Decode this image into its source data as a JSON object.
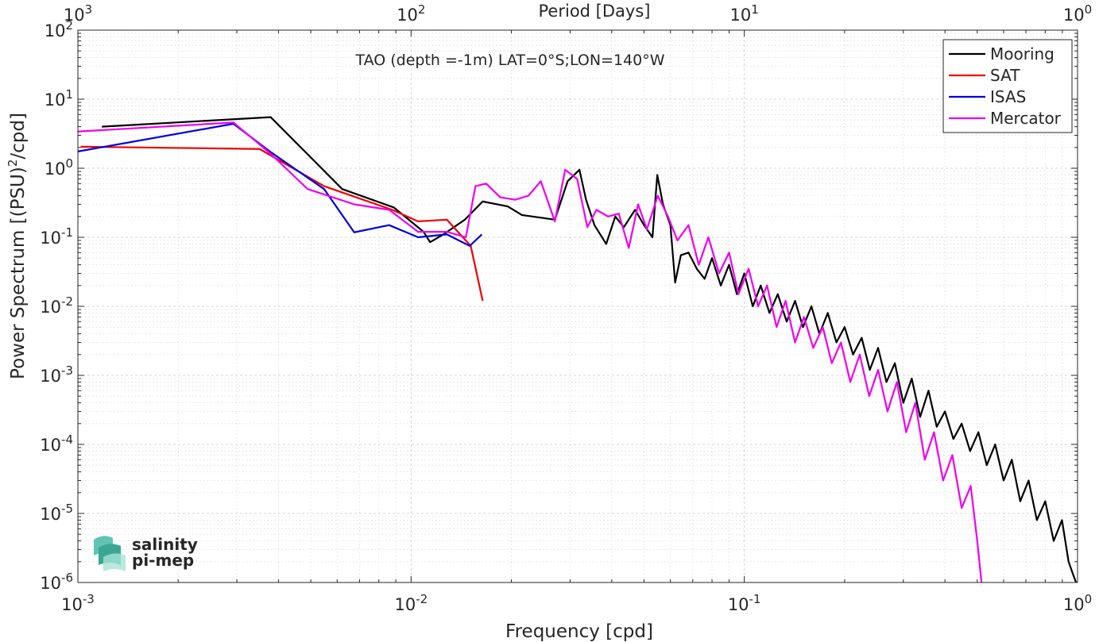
{
  "chart_data": {
    "type": "line",
    "title": "TAO (depth =-1m) LAT=0°S;LON=140°W",
    "xlabel": "Frequency [cpd]",
    "ylabel": "Power Spectrum [(PSU)",
    "ylabel_sup": "2",
    "ylabel_tail": "/cpd]",
    "top_xlabel": "Period [Days]",
    "x_scale": "log",
    "y_scale": "log",
    "xlim": [
      0.001,
      1
    ],
    "ylim": [
      1e-06,
      100
    ],
    "grid": "major+minor",
    "legend_position": "top-right",
    "x_ticks": [
      {
        "value": 0.001,
        "base": "10",
        "exp": "-3"
      },
      {
        "value": 0.01,
        "base": "10",
        "exp": "-2"
      },
      {
        "value": 0.1,
        "base": "10",
        "exp": "-1"
      },
      {
        "value": 1,
        "base": "10",
        "exp": "0"
      }
    ],
    "top_ticks": [
      {
        "value": 0.001,
        "base": "10",
        "exp": "3"
      },
      {
        "value": 0.01,
        "base": "10",
        "exp": "2"
      },
      {
        "value": 0.1,
        "base": "10",
        "exp": "1"
      },
      {
        "value": 1,
        "base": "10",
        "exp": "0"
      }
    ],
    "y_ticks": [
      {
        "value": 100,
        "base": "10",
        "exp": "2"
      },
      {
        "value": 10,
        "base": "10",
        "exp": "1"
      },
      {
        "value": 1,
        "base": "10",
        "exp": "0"
      },
      {
        "value": 0.1,
        "base": "10",
        "exp": "-1"
      },
      {
        "value": 0.01,
        "base": "10",
        "exp": "-2"
      },
      {
        "value": 0.001,
        "base": "10",
        "exp": "-3"
      },
      {
        "value": 0.0001,
        "base": "10",
        "exp": "-4"
      },
      {
        "value": 1e-05,
        "base": "10",
        "exp": "-5"
      },
      {
        "value": 1e-06,
        "base": "10",
        "exp": "-6"
      }
    ],
    "series": [
      {
        "name": "Mooring",
        "color": "#000000",
        "x": [
          0.00118,
          0.00379,
          0.00621,
          0.00888,
          0.0109,
          0.0114,
          0.0125,
          0.0145,
          0.0164,
          0.0195,
          0.0215,
          0.027,
          0.0295,
          0.032,
          0.0335,
          0.0355,
          0.0385,
          0.041,
          0.0435,
          0.047,
          0.05,
          0.053,
          0.0548,
          0.057,
          0.06,
          0.062,
          0.0645,
          0.068,
          0.072,
          0.076,
          0.08,
          0.085,
          0.09,
          0.095,
          0.1,
          0.106,
          0.112,
          0.119,
          0.126,
          0.134,
          0.142,
          0.15,
          0.159,
          0.168,
          0.178,
          0.189,
          0.2,
          0.212,
          0.225,
          0.238,
          0.252,
          0.267,
          0.283,
          0.3,
          0.318,
          0.337,
          0.357,
          0.378,
          0.4,
          0.424,
          0.449,
          0.476,
          0.504,
          0.534,
          0.566,
          0.6,
          0.635,
          0.673,
          0.713,
          0.755,
          0.8,
          0.848,
          0.898,
          0.94,
          0.97,
          0.99
        ],
        "y": [
          4.0,
          5.5,
          0.5,
          0.27,
          0.12,
          0.085,
          0.11,
          0.18,
          0.33,
          0.28,
          0.21,
          0.18,
          0.65,
          0.95,
          0.35,
          0.15,
          0.08,
          0.2,
          0.14,
          0.25,
          0.15,
          0.1,
          0.8,
          0.3,
          0.15,
          0.022,
          0.055,
          0.06,
          0.035,
          0.025,
          0.05,
          0.02,
          0.04,
          0.015,
          0.03,
          0.01,
          0.02,
          0.008,
          0.015,
          0.006,
          0.012,
          0.005,
          0.01,
          0.004,
          0.008,
          0.003,
          0.005,
          0.002,
          0.0035,
          0.0012,
          0.0025,
          0.0008,
          0.0015,
          0.0004,
          0.0009,
          0.00025,
          0.0006,
          0.00018,
          0.0003,
          0.00012,
          0.0002,
          8e-05,
          0.00015,
          5e-05,
          0.0001,
          3e-05,
          6e-05,
          1.5e-05,
          3e-05,
          8e-06,
          1.5e-05,
          4e-06,
          8e-06,
          2e-06,
          1.3e-06,
          1e-06
        ]
      },
      {
        "name": "SAT",
        "color": "#ee0000",
        "x": [
          0.00102,
          0.00351,
          0.00548,
          0.00877,
          0.0105,
          0.0128,
          0.0151,
          0.0164
        ],
        "y": [
          2.05,
          1.9,
          0.55,
          0.25,
          0.17,
          0.18,
          0.075,
          0.012
        ]
      },
      {
        "name": "ISAS",
        "color": "#0000dd",
        "x": [
          0.001,
          0.00293,
          0.0038,
          0.00548,
          0.00675,
          0.00859,
          0.0105,
          0.0128,
          0.015,
          0.0163
        ],
        "y": [
          1.75,
          4.4,
          1.7,
          0.5,
          0.118,
          0.15,
          0.1,
          0.11,
          0.075,
          0.11
        ]
      },
      {
        "name": "Mercator",
        "color": "#ee00ee",
        "x": [
          0.001,
          0.00293,
          0.0038,
          0.00489,
          0.00675,
          0.00859,
          0.0105,
          0.0128,
          0.0146,
          0.0156,
          0.0168,
          0.0185,
          0.0205,
          0.0225,
          0.0245,
          0.027,
          0.029,
          0.0315,
          0.0338,
          0.036,
          0.039,
          0.042,
          0.045,
          0.048,
          0.051,
          0.055,
          0.059,
          0.063,
          0.068,
          0.073,
          0.078,
          0.084,
          0.09,
          0.096,
          0.103,
          0.11,
          0.117,
          0.125,
          0.133,
          0.142,
          0.151,
          0.161,
          0.172,
          0.183,
          0.195,
          0.208,
          0.222,
          0.237,
          0.252,
          0.269,
          0.287,
          0.306,
          0.326,
          0.348,
          0.371,
          0.395,
          0.421,
          0.449,
          0.478,
          0.5,
          0.515
        ],
        "y": [
          3.4,
          4.6,
          1.6,
          0.5,
          0.3,
          0.25,
          0.12,
          0.12,
          0.1,
          0.55,
          0.6,
          0.38,
          0.35,
          0.4,
          0.65,
          0.17,
          0.95,
          0.7,
          0.14,
          0.25,
          0.2,
          0.22,
          0.07,
          0.3,
          0.13,
          0.4,
          0.2,
          0.09,
          0.15,
          0.04,
          0.1,
          0.03,
          0.06,
          0.015,
          0.035,
          0.01,
          0.02,
          0.005,
          0.012,
          0.003,
          0.007,
          0.0025,
          0.005,
          0.0015,
          0.003,
          0.0008,
          0.002,
          0.0005,
          0.0012,
          0.0003,
          0.0008,
          0.00015,
          0.0004,
          6e-05,
          0.00015,
          3e-05,
          7e-05,
          1.2e-05,
          2.5e-05,
          4e-06,
          1e-06
        ]
      }
    ]
  },
  "logo": {
    "line1": "salinity",
    "line2": "pi-mep",
    "color": "#2aa898"
  }
}
